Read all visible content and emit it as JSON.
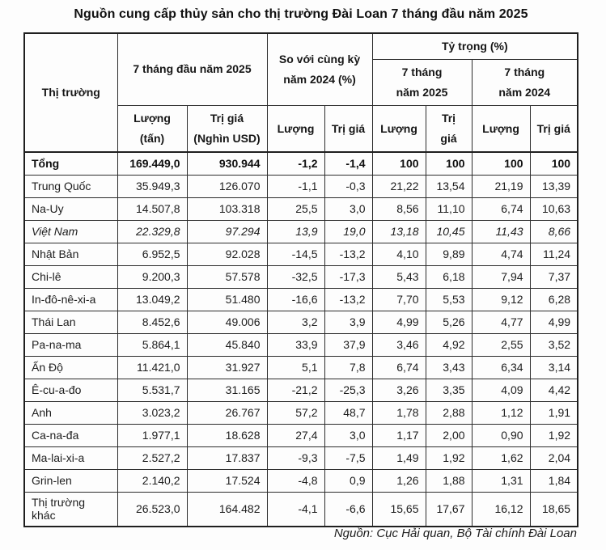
{
  "title": "Nguồn cung cấp thủy sản cho thị trường Đài Loan 7  tháng đầu năm 2025",
  "source": "Nguồn: Cục Hải quan, Bộ Tài chính Đài Loan",
  "table": {
    "header": {
      "market": "Thị trường",
      "group_7m_2025": "7 tháng đầu năm 2025",
      "group_compare_line1": "So với cùng kỳ",
      "group_compare_line2": "năm 2024 (%)",
      "group_share": "Tỷ trọng (%)",
      "share_2025_line1": "7 tháng",
      "share_2025_line2": "năm 2025",
      "share_2024_line1": "7 tháng",
      "share_2024_line2": "năm 2024",
      "qty_ton_line1": "Lượng",
      "qty_ton_line2": "(tấn)",
      "val_kusd_line1": "Trị giá",
      "val_kusd_line2": "(Nghìn USD)",
      "qty": "Lượng",
      "val": "Trị giá",
      "val_wrap_line1": "Trị",
      "val_wrap_line2": "giá"
    },
    "rows": [
      {
        "market": "Tổng",
        "bold": true,
        "values": [
          "169.449,0",
          "930.944",
          "-1,2",
          "-1,4",
          "100",
          "100",
          "100",
          "100"
        ]
      },
      {
        "market": "Trung Quốc",
        "values": [
          "35.949,3",
          "126.070",
          "-1,1",
          "-0,3",
          "21,22",
          "13,54",
          "21,19",
          "13,39"
        ]
      },
      {
        "market": "Na-Uy",
        "values": [
          "14.507,8",
          "103.318",
          "25,5",
          "3,0",
          "8,56",
          "11,10",
          "6,74",
          "10,63"
        ]
      },
      {
        "market": "Việt Nam",
        "italic": true,
        "values": [
          "22.329,8",
          "97.294",
          "13,9",
          "19,0",
          "13,18",
          "10,45",
          "11,43",
          "8,66"
        ]
      },
      {
        "market": "Nhật Bản",
        "values": [
          "6.952,5",
          "92.028",
          "-14,5",
          "-13,2",
          "4,10",
          "9,89",
          "4,74",
          "11,24"
        ]
      },
      {
        "market": "Chi-lê",
        "values": [
          "9.200,3",
          "57.578",
          "-32,5",
          "-17,3",
          "5,43",
          "6,18",
          "7,94",
          "7,37"
        ]
      },
      {
        "market": "In-đô-nê-xi-a",
        "values": [
          "13.049,2",
          "51.480",
          "-16,6",
          "-13,2",
          "7,70",
          "5,53",
          "9,12",
          "6,28"
        ]
      },
      {
        "market": "Thái Lan",
        "values": [
          "8.452,6",
          "49.006",
          "3,2",
          "3,9",
          "4,99",
          "5,26",
          "4,77",
          "4,99"
        ]
      },
      {
        "market": "Pa-na-ma",
        "values": [
          "5.864,1",
          "45.840",
          "33,9",
          "37,9",
          "3,46",
          "4,92",
          "2,55",
          "3,52"
        ]
      },
      {
        "market": "Ấn Độ",
        "values": [
          "11.421,0",
          "31.927",
          "5,1",
          "7,8",
          "6,74",
          "3,43",
          "6,34",
          "3,14"
        ]
      },
      {
        "market": "Ê-cu-a-đo",
        "values": [
          "5.531,7",
          "31.165",
          "-21,2",
          "-25,3",
          "3,26",
          "3,35",
          "4,09",
          "4,42"
        ]
      },
      {
        "market": "Anh",
        "values": [
          "3.023,2",
          "26.767",
          "57,2",
          "48,7",
          "1,78",
          "2,88",
          "1,12",
          "1,91"
        ]
      },
      {
        "market": "Ca-na-đa",
        "values": [
          "1.977,1",
          "18.628",
          "27,4",
          "3,0",
          "1,17",
          "2,00",
          "0,90",
          "1,92"
        ]
      },
      {
        "market": "Ma-lai-xi-a",
        "values": [
          "2.527,2",
          "17.837",
          "-9,3",
          "-7,5",
          "1,49",
          "1,92",
          "1,62",
          "2,04"
        ]
      },
      {
        "market": "Grin-len",
        "values": [
          "2.140,2",
          "17.524",
          "-4,8",
          "0,9",
          "1,26",
          "1,88",
          "1,31",
          "1,84"
        ]
      },
      {
        "market": "Thị trường khác",
        "values": [
          "26.523,0",
          "164.482",
          "-4,1",
          "-6,6",
          "15,65",
          "17,67",
          "16,12",
          "18,65"
        ]
      }
    ]
  }
}
